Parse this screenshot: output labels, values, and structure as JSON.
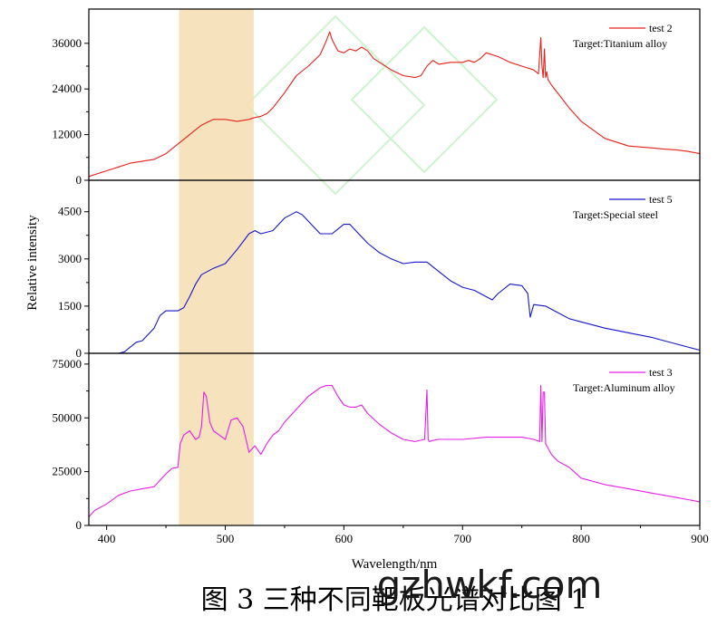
{
  "chart_data": {
    "type": "line",
    "xlabel": "Wavelength/nm",
    "ylabel": "Relative intensity",
    "xlim": [
      385,
      900
    ],
    "x_ticks": [
      400,
      500,
      600,
      700,
      800,
      900
    ],
    "highlight_band": {
      "x": [
        461,
        524
      ],
      "color": "#f5deb3"
    },
    "panels": [
      {
        "ylim": [
          0,
          45000
        ],
        "y_ticks": [
          0,
          12000,
          24000,
          36000
        ],
        "y_tick_labels": [
          "0",
          "12000",
          "24000",
          "36000"
        ],
        "series": [
          {
            "name": "test 2",
            "target": "Target:Titanium alloy",
            "color": "#e8201a",
            "x": [
              385,
              400,
              420,
              440,
              450,
              460,
              470,
              480,
              490,
              500,
              510,
              520,
              525,
              530,
              535,
              540,
              550,
              560,
              570,
              580,
              585,
              588,
              590,
              595,
              600,
              605,
              610,
              615,
              620,
              625,
              630,
              640,
              650,
              660,
              665,
              670,
              675,
              680,
              690,
              700,
              705,
              710,
              715,
              720,
              730,
              740,
              750,
              760,
              764,
              766,
              767,
              768,
              769,
              770,
              771,
              772,
              775,
              780,
              790,
              800,
              820,
              840,
              860,
              870,
              880,
              890,
              900
            ],
            "y": [
              1000,
              2500,
              4500,
              5500,
              7000,
              9500,
              12000,
              14500,
              16000,
              16000,
              15500,
              16000,
              16500,
              16800,
              17500,
              19000,
              23000,
              27500,
              30000,
              33000,
              36500,
              39000,
              37000,
              34000,
              33500,
              34500,
              34000,
              35000,
              34000,
              32000,
              31000,
              29000,
              27500,
              27000,
              27500,
              30000,
              31500,
              30500,
              31000,
              31000,
              31500,
              31000,
              32000,
              33500,
              32500,
              31000,
              30000,
              29000,
              28000,
              37500,
              30000,
              27000,
              34500,
              27000,
              28500,
              26500,
              25000,
              23000,
              19000,
              15500,
              11000,
              9000,
              8500,
              8200,
              8000,
              7600,
              7000
            ]
          }
        ]
      },
      {
        "ylim": [
          0,
          5500
        ],
        "y_ticks": [
          0,
          1500,
          3000,
          4500
        ],
        "y_tick_labels": [
          "0",
          "1500",
          "3000",
          "4500"
        ],
        "series": [
          {
            "name": "test 5",
            "target": "Target:Special steel",
            "color": "#1515c8",
            "x": [
              385,
              400,
              410,
              415,
              420,
              425,
              430,
              440,
              445,
              450,
              460,
              465,
              470,
              475,
              480,
              490,
              500,
              510,
              520,
              525,
              530,
              540,
              550,
              560,
              565,
              570,
              580,
              590,
              600,
              605,
              610,
              620,
              630,
              640,
              650,
              660,
              670,
              680,
              690,
              700,
              710,
              720,
              725,
              730,
              740,
              750,
              755,
              757,
              760,
              770,
              780,
              790,
              800,
              820,
              840,
              860,
              870,
              880,
              890,
              900
            ],
            "y": [
              0,
              0,
              0,
              50,
              200,
              350,
              400,
              800,
              1200,
              1350,
              1350,
              1450,
              1800,
              2200,
              2500,
              2700,
              2850,
              3300,
              3800,
              3900,
              3800,
              3900,
              4300,
              4500,
              4400,
              4200,
              3800,
              3800,
              4100,
              4100,
              3900,
              3500,
              3200,
              3000,
              2850,
              2900,
              2900,
              2600,
              2300,
              2100,
              2000,
              1800,
              1700,
              1900,
              2200,
              2150,
              1900,
              1150,
              1550,
              1500,
              1300,
              1100,
              1000,
              800,
              650,
              500,
              400,
              300,
              200,
              100
            ]
          }
        ]
      },
      {
        "ylim": [
          0,
          80000
        ],
        "y_ticks": [
          0,
          25000,
          50000,
          75000
        ],
        "y_tick_labels": [
          "0",
          "25000",
          "50000",
          "75000"
        ],
        "series": [
          {
            "name": "test 3",
            "target": "Target:Aluminum alloy",
            "color": "#e61ee6",
            "x": [
              385,
              390,
              400,
              410,
              420,
              430,
              440,
              450,
              455,
              460,
              462,
              465,
              470,
              475,
              478,
              480,
              482,
              484,
              487,
              490,
              495,
              500,
              505,
              510,
              515,
              520,
              525,
              530,
              535,
              540,
              545,
              550,
              560,
              570,
              580,
              585,
              590,
              595,
              600,
              605,
              610,
              615,
              620,
              630,
              640,
              650,
              660,
              668,
              670,
              671,
              672,
              675,
              680,
              700,
              720,
              740,
              750,
              760,
              765,
              766,
              767,
              768,
              769,
              770,
              772,
              775,
              780,
              790,
              800,
              820,
              840,
              860,
              880,
              890,
              900
            ],
            "y": [
              4000,
              7000,
              10000,
              14000,
              16000,
              17000,
              18000,
              24000,
              26500,
              27000,
              38000,
              42000,
              44000,
              40000,
              41000,
              46000,
              62000,
              60000,
              48000,
              44000,
              42000,
              40000,
              49000,
              50000,
              46000,
              34000,
              37000,
              33000,
              38000,
              42000,
              44000,
              48000,
              54000,
              60000,
              64000,
              65000,
              65000,
              60000,
              56000,
              55000,
              55000,
              56000,
              52000,
              47000,
              43000,
              40000,
              39000,
              40000,
              63000,
              40000,
              39000,
              39500,
              40000,
              40000,
              41000,
              41000,
              41000,
              40000,
              39000,
              65000,
              39000,
              62000,
              62000,
              38000,
              36000,
              33000,
              30000,
              27000,
              22000,
              19000,
              17000,
              15000,
              13000,
              12000,
              11000
            ]
          }
        ]
      }
    ]
  },
  "caption": "图 3  三种不同靶板光谱对比图 1",
  "watermark": "gzhwkf.com"
}
